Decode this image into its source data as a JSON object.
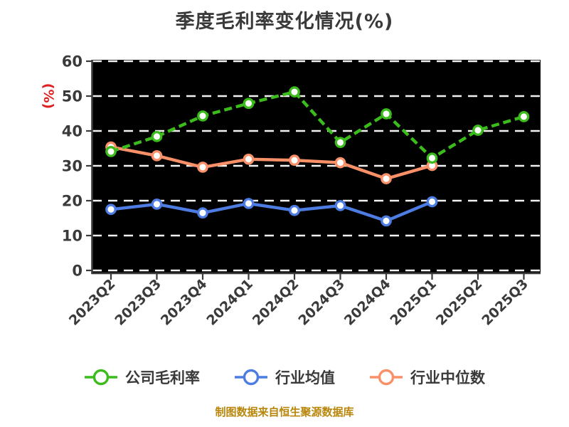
{
  "title": "季度毛利率变化情况(%)",
  "footer": "制图数据来自恒生聚源数据库",
  "colors": {
    "title_text": "#3a3a3a",
    "tick_text": "#3a3a3a",
    "axis_line": "#3a3a3a",
    "ylabel_red": "#e02020",
    "footer_gold": "#b8860b",
    "plot_background": "#000000",
    "page_background": "#ffffff",
    "gridline": "#f2f2f2",
    "marker_fill": "#ffffff"
  },
  "chart_data": {
    "type": "line",
    "title": "季度毛利率变化情况(%)",
    "xlabel": "",
    "ylabel": "(%)",
    "ylim": [
      0,
      60
    ],
    "yticks": [
      0,
      10,
      20,
      30,
      40,
      50,
      60
    ],
    "grid": "horizontal-dashed",
    "legend_position": "bottom",
    "categories": [
      "2023Q2",
      "2023Q3",
      "2023Q4",
      "2024Q1",
      "2024Q2",
      "2024Q3",
      "2024Q4",
      "2025Q1",
      "2025Q2",
      "2025Q3"
    ],
    "series": [
      {
        "name": "公司毛利率",
        "color": "#3cbb1c",
        "style": "dashed",
        "values": [
          34.1,
          38.4,
          44.3,
          47.9,
          51.2,
          36.7,
          44.9,
          32.2,
          40.2,
          44.1
        ]
      },
      {
        "name": "行业均值",
        "color": "#4d7ce2",
        "style": "solid",
        "values": [
          17.5,
          19.0,
          16.5,
          19.2,
          17.2,
          18.6,
          14.2,
          19.7,
          null,
          null
        ]
      },
      {
        "name": "行业中位数",
        "color": "#fa9068",
        "style": "solid",
        "values": [
          35.4,
          32.9,
          29.6,
          31.9,
          31.6,
          30.9,
          26.3,
          30.1,
          null,
          null
        ]
      }
    ]
  }
}
